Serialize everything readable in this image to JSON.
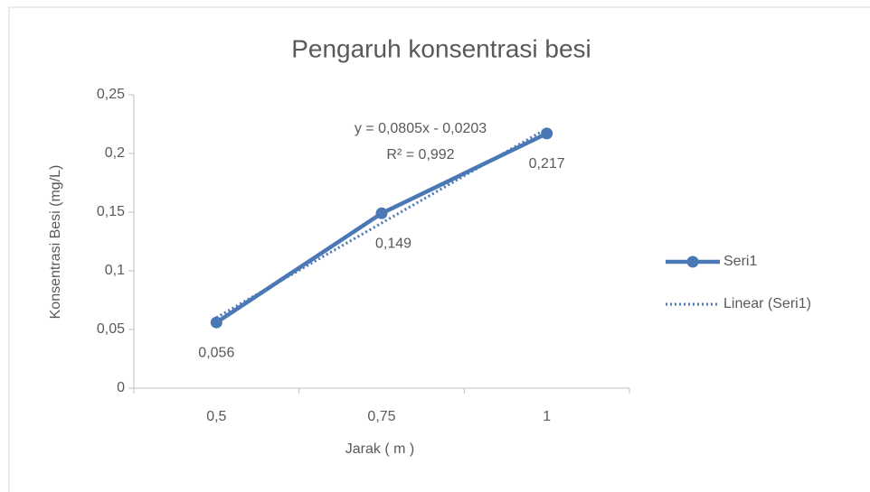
{
  "chart_data": {
    "type": "line",
    "title": "Pengaruh konsentrasi besi",
    "x_label": "Jarak ( m )",
    "y_label": "Konsentrasi Besi (mg/L)",
    "categories": [
      "0,5",
      "0,75",
      "1"
    ],
    "series": [
      {
        "name": "Seri1",
        "color": "#4a78b5",
        "style": "solid",
        "markers": true,
        "values": [
          0.056,
          0.149,
          0.217
        ],
        "value_labels": [
          "0,056",
          "0,149",
          "0,217"
        ]
      },
      {
        "name": "Linear (Seri1)",
        "color": "#4a78b5",
        "style": "dotted",
        "markers": false,
        "values": [
          0.0602,
          0.1407,
          0.2212
        ]
      }
    ],
    "annotations": [
      "y = 0,0805x - 0,0203",
      "R² = 0,992"
    ],
    "ylim": [
      0,
      0.25
    ],
    "yticks": [
      0,
      {
        "value": 0.05,
        "label": "0,05"
      },
      {
        "value": 0.1,
        "label": "0,1"
      },
      {
        "value": 0.15,
        "label": "0,15"
      },
      {
        "value": 0.2,
        "label": "0,2"
      },
      {
        "value": 0.25,
        "label": "0,25"
      }
    ],
    "grid": false,
    "legend": "right"
  }
}
